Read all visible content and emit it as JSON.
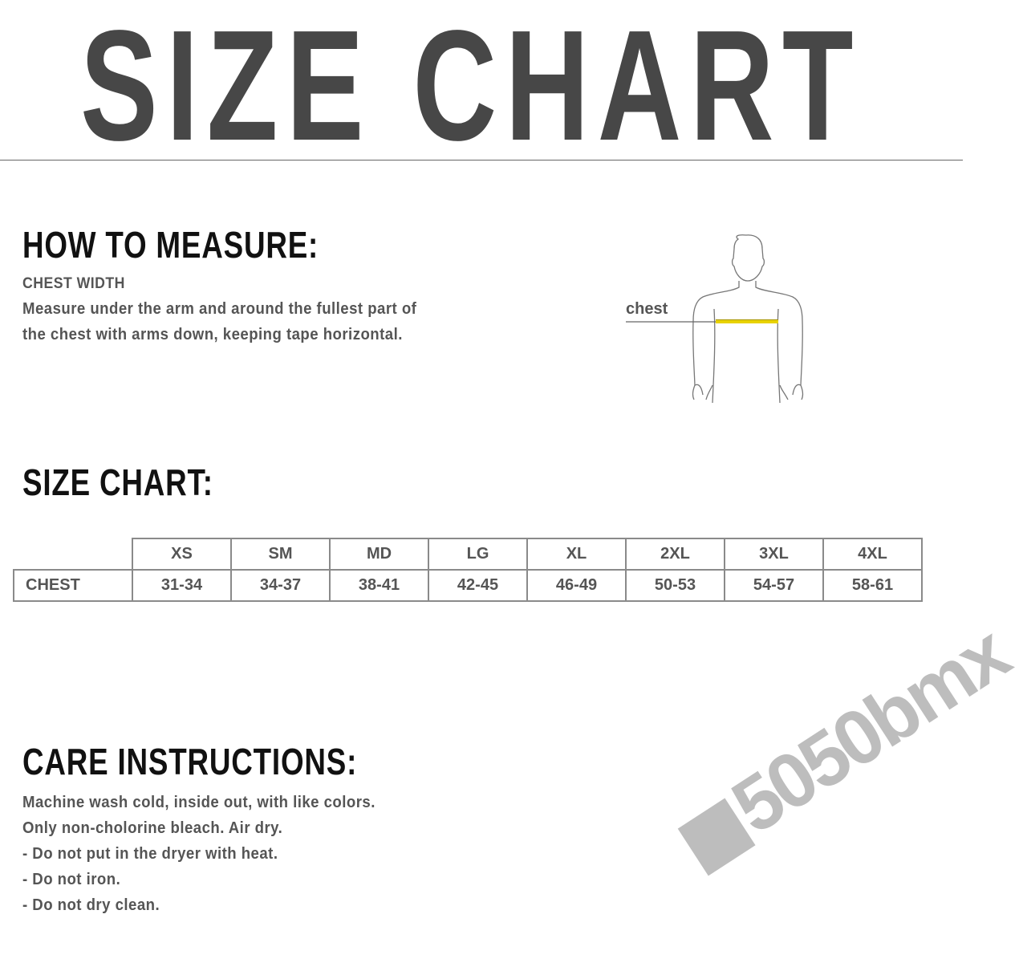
{
  "title": "SIZE CHART",
  "measure": {
    "heading": "HOW TO MEASURE:",
    "subheading": "CHEST WIDTH",
    "lines": [
      "Measure under the arm and around the fullest part of",
      "the chest with arms down, keeping tape horizontal."
    ],
    "figure_label": "chest",
    "tape_color": "#e8d200"
  },
  "size_chart": {
    "heading": "SIZE CHART:",
    "columns": [
      "XS",
      "SM",
      "MD",
      "LG",
      "XL",
      "2XL",
      "3XL",
      "4XL"
    ],
    "row_label": "CHEST",
    "values": [
      "31-34",
      "34-37",
      "38-41",
      "42-45",
      "46-49",
      "50-53",
      "54-57",
      "58-61"
    ]
  },
  "care": {
    "heading": "CARE INSTRUCTIONS:",
    "lines": [
      "Machine wash cold, inside out, with like colors.",
      "Only non-cholorine bleach.  Air dry.",
      "- Do not put in the dryer with heat.",
      "- Do not iron.",
      "- Do not dry clean."
    ]
  },
  "logo": "5050bmx"
}
